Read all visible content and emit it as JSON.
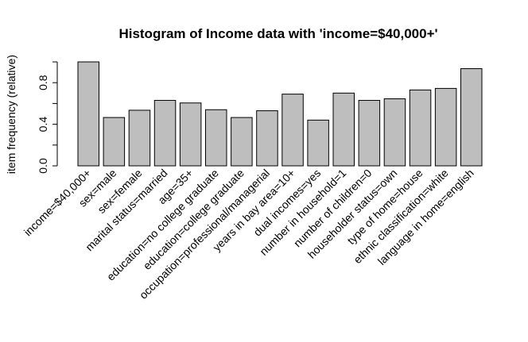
{
  "chart_data": {
    "type": "bar",
    "title": "Histogram of Income data with 'income=$40,000+'",
    "xlabel": "",
    "ylabel": "item frequency (relative)",
    "ylim": [
      0,
      1.0
    ],
    "yticks": [
      "0.0",
      "0.4",
      "0.8"
    ],
    "categories": [
      "income=$40,000+",
      "sex=male",
      "sex=female",
      "marital status=married",
      "age=35+",
      "education=no college graduate",
      "education=college graduate",
      "occupation=professional/managerial",
      "years in bay area=10+",
      "dual incomes=yes",
      "number in household=1",
      "number of children=0",
      "householder status=own",
      "type of home=house",
      "ethnic classification=white",
      "language in home=english"
    ],
    "values": [
      1.0,
      0.465,
      0.535,
      0.63,
      0.605,
      0.54,
      0.465,
      0.53,
      0.69,
      0.44,
      0.7,
      0.63,
      0.645,
      0.73,
      0.745,
      0.935
    ],
    "colors": {
      "bar_fill": "#bebebe",
      "bar_stroke": "#000000"
    }
  }
}
